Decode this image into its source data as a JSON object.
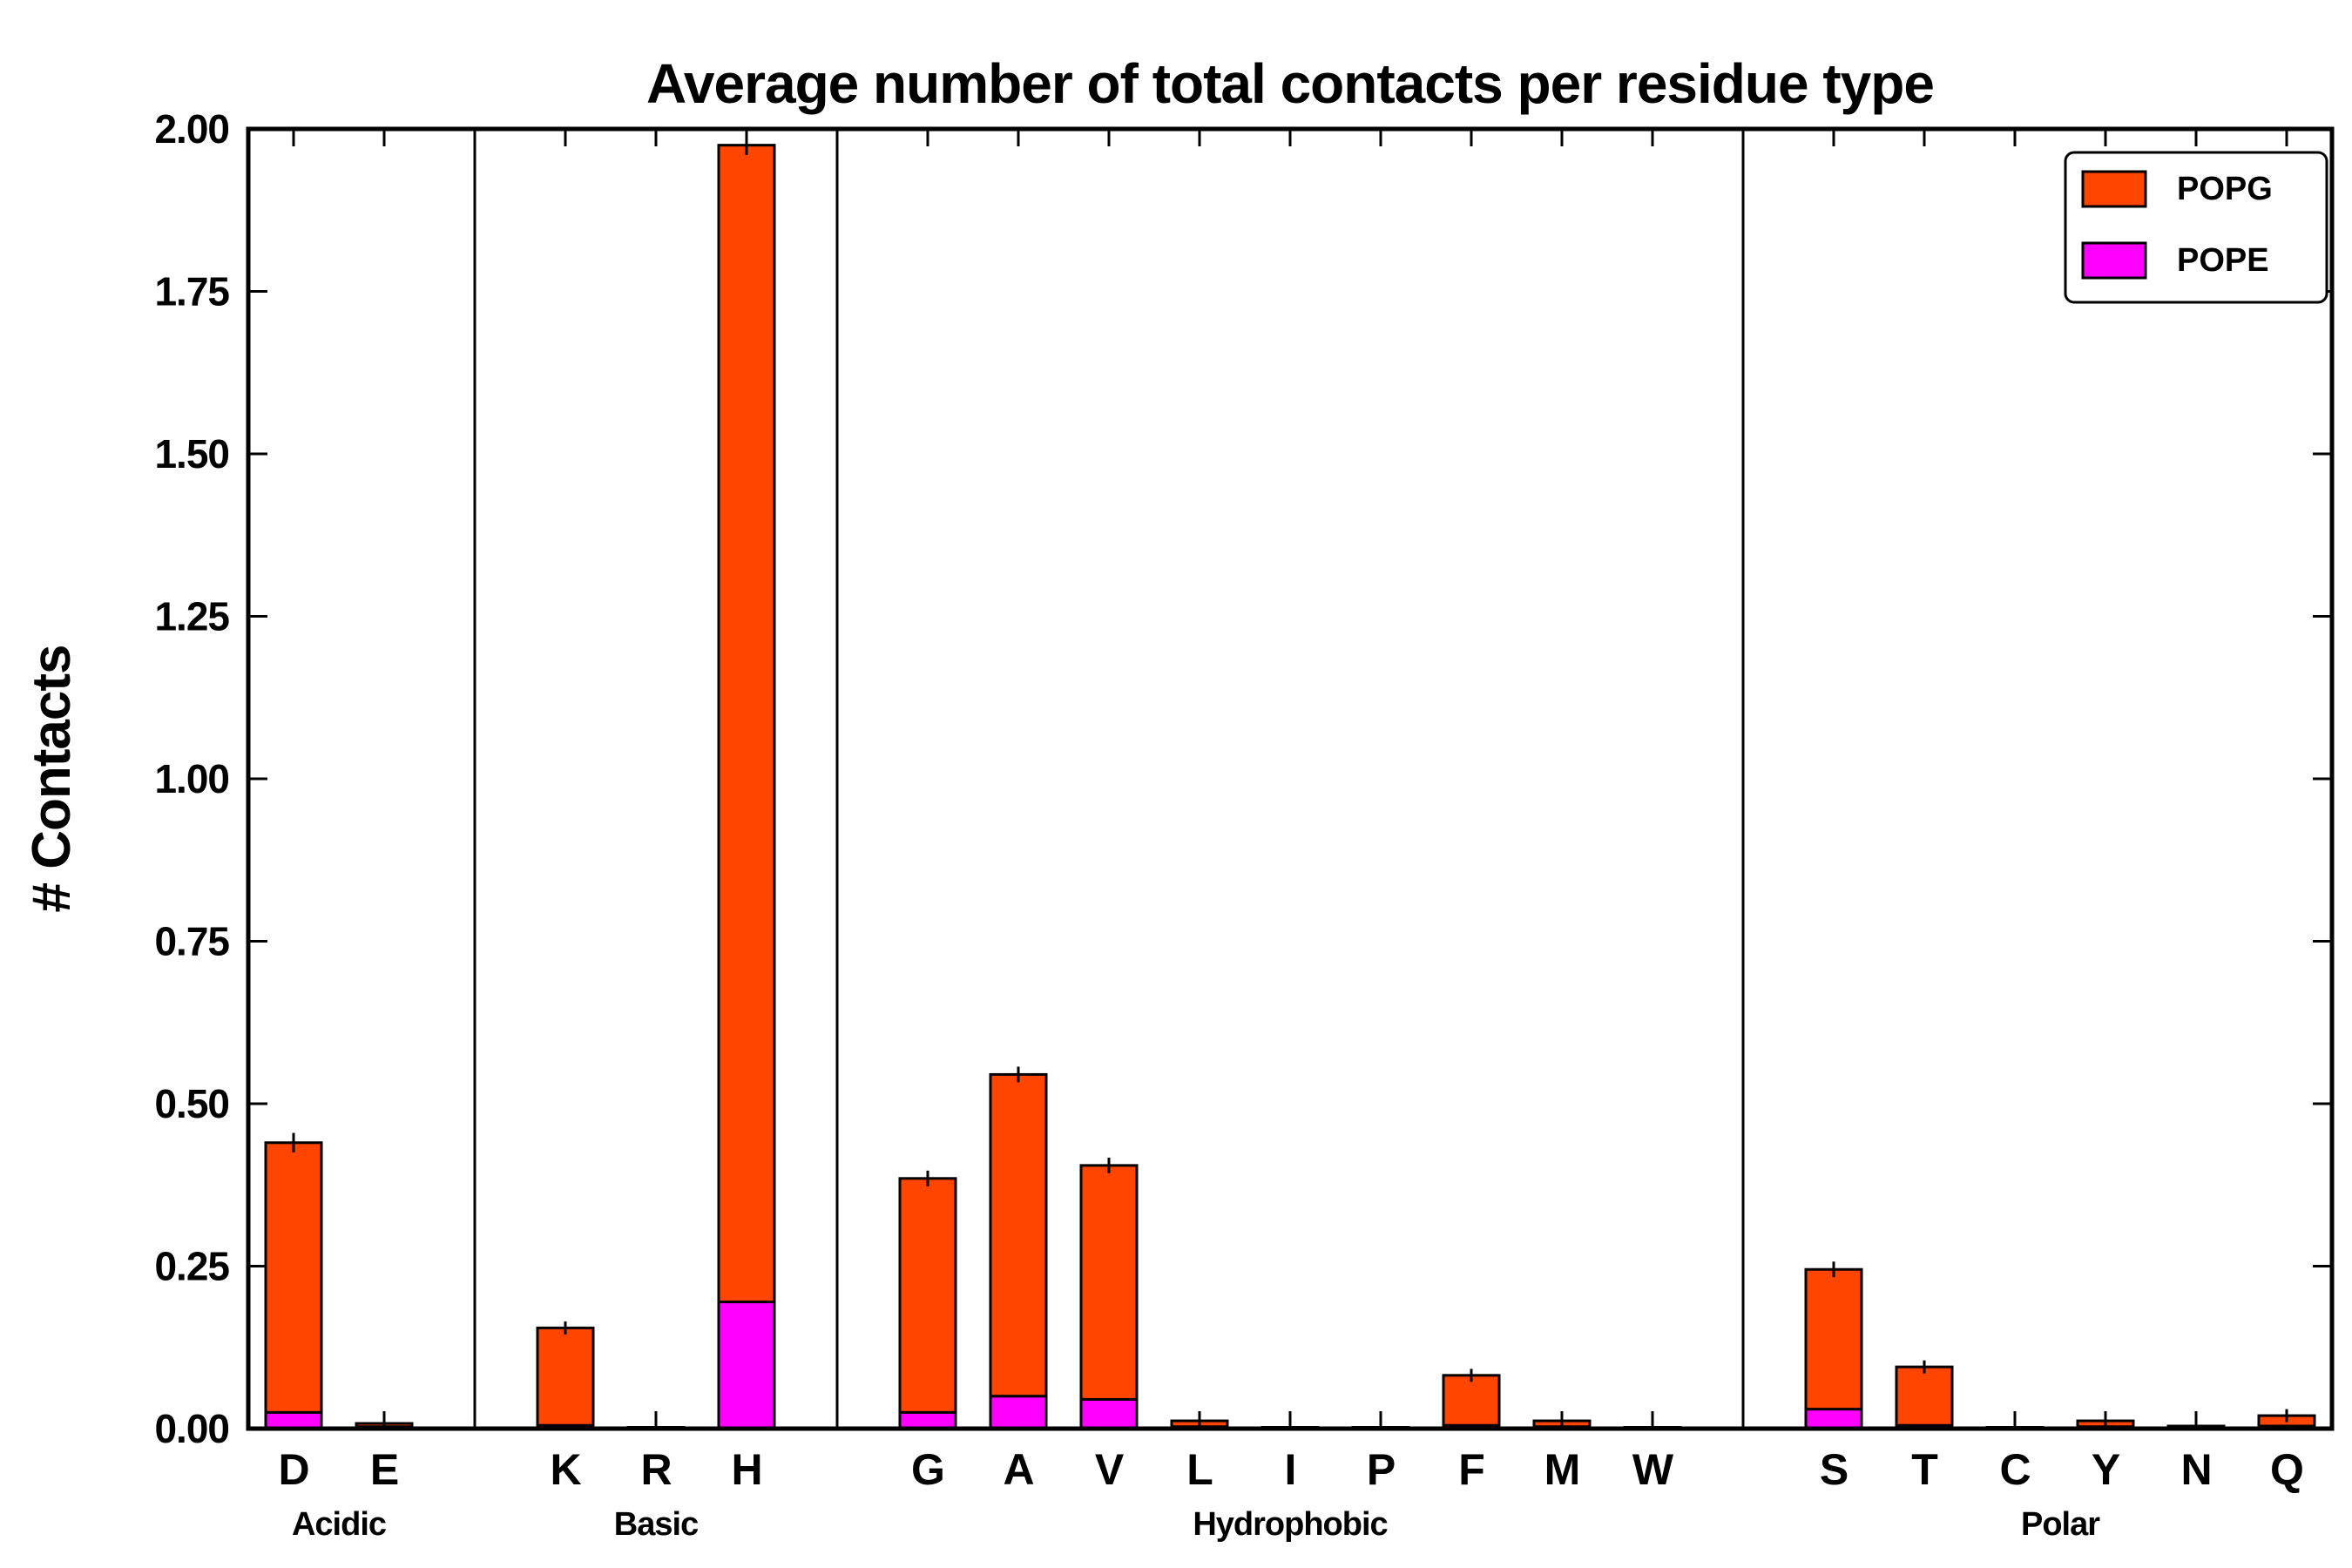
{
  "chart_data": {
    "type": "bar",
    "stacked": true,
    "title": "Average number of total contacts per residue type",
    "ylabel": "# Contacts",
    "xlabel": "",
    "ylim": [
      0,
      2.0
    ],
    "ytick_step": 0.25,
    "ytick_labels": [
      "0.00",
      "0.25",
      "0.50",
      "0.75",
      "1.00",
      "1.25",
      "1.50",
      "1.75",
      "2.00"
    ],
    "grid": false,
    "legend_position": "upper right",
    "categories": [
      "D",
      "E",
      "K",
      "R",
      "H",
      "G",
      "A",
      "V",
      "L",
      "I",
      "P",
      "F",
      "M",
      "W",
      "S",
      "T",
      "C",
      "Y",
      "N",
      "Q"
    ],
    "groups": [
      {
        "label": "Acidic",
        "residues": [
          "D",
          "E"
        ]
      },
      {
        "label": "Basic",
        "residues": [
          "K",
          "R",
          "H"
        ]
      },
      {
        "label": "Hydrophobic",
        "residues": [
          "G",
          "A",
          "V",
          "L",
          "I",
          "P",
          "F",
          "M",
          "W"
        ]
      },
      {
        "label": "Polar",
        "residues": [
          "S",
          "T",
          "C",
          "Y",
          "N",
          "Q"
        ]
      }
    ],
    "series": [
      {
        "name": "POPE",
        "color": "#FF00FF",
        "values": [
          0.025,
          0.003,
          0.005,
          0.001,
          0.195,
          0.025,
          0.05,
          0.045,
          0.003,
          0.001,
          0.001,
          0.005,
          0.003,
          0.001,
          0.03,
          0.005,
          0.001,
          0.003,
          0.001,
          0.004
        ]
      },
      {
        "name": "POPG",
        "color": "#FF4500",
        "values": [
          0.415,
          0.005,
          0.15,
          0.001,
          1.78,
          0.36,
          0.495,
          0.36,
          0.009,
          0.001,
          0.001,
          0.077,
          0.009,
          0.001,
          0.215,
          0.09,
          0.001,
          0.009,
          0.003,
          0.016
        ]
      }
    ],
    "totals": [
      0.44,
      0.008,
      0.155,
      0.002,
      1.975,
      0.385,
      0.545,
      0.405,
      0.012,
      0.002,
      0.002,
      0.082,
      0.012,
      0.002,
      0.245,
      0.095,
      0.002,
      0.012,
      0.004,
      0.02
    ],
    "errors": [
      0.015,
      0.012,
      0.01,
      0.003,
      0.015,
      0.012,
      0.012,
      0.012,
      0.01,
      0.003,
      0.003,
      0.01,
      0.008,
      0.003,
      0.012,
      0.01,
      0.003,
      0.008,
      0.004,
      0.01
    ],
    "legend": [
      {
        "label": "POPG",
        "color": "#FF4500"
      },
      {
        "label": "POPE",
        "color": "#FF00FF"
      }
    ],
    "bar_edge_color": "#000000",
    "axis_color": "#000000"
  }
}
